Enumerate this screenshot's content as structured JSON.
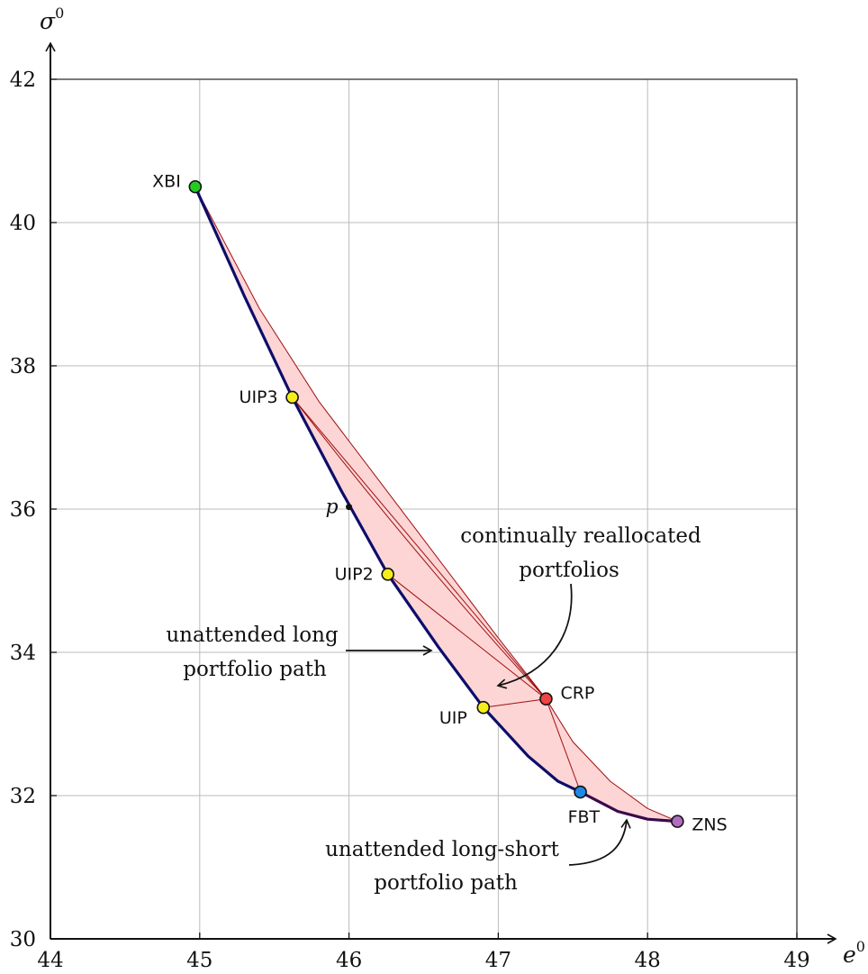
{
  "chart_data": {
    "type": "line",
    "xlabel": "e",
    "xlabel_sup": "0",
    "ylabel": "σ",
    "ylabel_sup": "0",
    "xlim": [
      44,
      49
    ],
    "ylim": [
      30,
      42
    ],
    "x_ticks": [
      44,
      45,
      46,
      47,
      48,
      49
    ],
    "y_ticks": [
      30,
      32,
      34,
      36,
      38,
      40,
      42
    ],
    "grid": true,
    "colors": {
      "long_path": "#0d0d6b",
      "long_short_path": "#3a0a4a",
      "region_fill": "#fdd5d5",
      "region_edge": "#a01010",
      "grid": "#bbbbbb"
    },
    "points": [
      {
        "name": "XBI",
        "x": 44.97,
        "y": 40.5,
        "color": "#22cc22"
      },
      {
        "name": "UIP3",
        "x": 45.62,
        "y": 37.56,
        "color": "#f5ee1a"
      },
      {
        "name": "UIP2",
        "x": 46.26,
        "y": 35.09,
        "color": "#f5ee1a"
      },
      {
        "name": "UIP",
        "x": 46.9,
        "y": 33.23,
        "color": "#f5ee1a"
      },
      {
        "name": "CRP",
        "x": 47.32,
        "y": 33.35,
        "color": "#ee4444"
      },
      {
        "name": "FBT",
        "x": 47.55,
        "y": 32.05,
        "color": "#1e88e5"
      },
      {
        "name": "ZNS",
        "x": 48.2,
        "y": 31.64,
        "color": "#b06cc0"
      }
    ],
    "p_point": {
      "label": "p",
      "x": 46.0,
      "y": 36.03
    },
    "series": [
      {
        "id": "long",
        "x": [
          44.97,
          45.3,
          45.62,
          45.95,
          46.26,
          46.6,
          46.9,
          47.2,
          47.4,
          47.55
        ],
        "y": [
          40.5,
          38.97,
          37.56,
          36.25,
          35.09,
          34.07,
          33.23,
          32.55,
          32.2,
          32.05
        ]
      },
      {
        "id": "long_short",
        "x": [
          47.55,
          47.8,
          48.0,
          48.2
        ],
        "y": [
          32.05,
          31.78,
          31.67,
          31.64
        ]
      }
    ],
    "crp_upper_boundary": {
      "x": [
        44.97,
        45.4,
        45.8,
        46.2,
        46.6,
        47.0,
        47.32
      ],
      "y": [
        40.5,
        38.8,
        37.5,
        36.4,
        35.3,
        34.2,
        33.35
      ]
    },
    "crp_to_zns_boundary": {
      "x": [
        47.32,
        47.5,
        47.75,
        48.0,
        48.2
      ],
      "y": [
        33.35,
        32.75,
        32.2,
        31.82,
        31.64
      ]
    },
    "annotations": {
      "crp_line1": "continually reallocated",
      "crp_line2": "portfolios",
      "long_line1": "unattended long",
      "long_line2": "portfolio path",
      "ls_line1": "unattended long-short",
      "ls_line2": "portfolio path"
    }
  }
}
